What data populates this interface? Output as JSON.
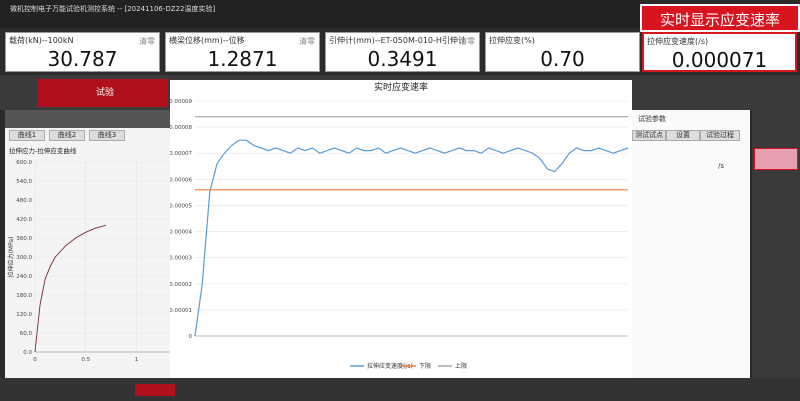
{
  "window_title": "微机控制电子万能试验机测控系统 -- [20241106-DZ22温度实验]",
  "callout": "实时显示应变速率",
  "readouts": [
    {
      "label": "载荷(kN)--100kN",
      "value": "30.787",
      "action": "清零"
    },
    {
      "label": "横梁位移(mm)--位移",
      "value": "1.2871",
      "action": "清零"
    },
    {
      "label": "引伸计(mm)--ET-050M-010-H引伸计",
      "value": "0.3491",
      "action": "清零"
    },
    {
      "label": "拉伸应变(%)",
      "value": "0.70"
    },
    {
      "label": "拉伸应变速度(/s)",
      "value": "0.000071"
    }
  ],
  "nav": {
    "active_tab": "试验"
  },
  "left_panel": {
    "tabs": [
      "曲线1",
      "曲线2",
      "曲线3"
    ]
  },
  "right_panel": {
    "title": "试验参数",
    "tabs": [
      "测试试点",
      "设置",
      "试验过程"
    ],
    "unit": "/s"
  },
  "chart_data": [
    {
      "type": "line",
      "title": "拉伸应力-拉伸应变曲线",
      "y_label": "拉伸应力(MPa)",
      "x": [
        0,
        0.02,
        0.05,
        0.1,
        0.15,
        0.2,
        0.3,
        0.4,
        0.5,
        0.6,
        0.7
      ],
      "series": [
        {
          "name": "拉伸应力",
          "color": "#7a2a2a",
          "values": [
            0,
            60,
            150,
            230,
            270,
            300,
            335,
            360,
            378,
            392,
            400
          ]
        }
      ],
      "xlim": [
        0,
        1.38
      ],
      "xticks": [
        0,
        0.5,
        1
      ],
      "ylim": [
        0,
        600
      ],
      "yticks": [
        {
          "value": 0,
          "label": "0.0"
        },
        {
          "value": 60,
          "label": "60.0"
        },
        {
          "value": 120,
          "label": "120.0"
        },
        {
          "value": 180,
          "label": "180.0"
        },
        {
          "value": 240,
          "label": "240.0"
        },
        {
          "value": 300,
          "label": "300.0"
        },
        {
          "value": 360,
          "label": "360.0"
        },
        {
          "value": 420,
          "label": "420.0"
        },
        {
          "value": 480,
          "label": "480.0"
        },
        {
          "value": 540,
          "label": "540.0"
        },
        {
          "value": 600,
          "label": "600.0"
        }
      ],
      "grid": true
    },
    {
      "type": "line",
      "title": "实时应变速率",
      "series": [
        {
          "name": "拉伸应变速度(/s)",
          "color": "#5b9bd5",
          "values": [
            0,
            2e-05,
            5.5e-05,
            6.6e-05,
            7e-05,
            7.3e-05,
            7.5e-05,
            7.5e-05,
            7.3e-05,
            7.2e-05,
            7.1e-05,
            7.2e-05,
            7.1e-05,
            7e-05,
            7.2e-05,
            7.1e-05,
            7.2e-05,
            7e-05,
            7.1e-05,
            7.2e-05,
            7.1e-05,
            7e-05,
            7.2e-05,
            7.1e-05,
            7.1e-05,
            7.2e-05,
            7e-05,
            7.1e-05,
            7.2e-05,
            7.1e-05,
            7e-05,
            7.1e-05,
            7.2e-05,
            7.1e-05,
            7e-05,
            7.1e-05,
            7.2e-05,
            7.1e-05,
            7.1e-05,
            7e-05,
            7.2e-05,
            7.1e-05,
            7e-05,
            7.1e-05,
            7.2e-05,
            7.1e-05,
            7e-05,
            6.8e-05,
            6.4e-05,
            6.3e-05,
            6.6e-05,
            7e-05,
            7.2e-05,
            7.1e-05,
            7.1e-05,
            7.2e-05,
            7.1e-05,
            7e-05,
            7.1e-05,
            7.2e-05
          ]
        },
        {
          "name": "下限",
          "color": "#ed7d31",
          "values": [
            5.6e-05,
            5.6e-05
          ]
        },
        {
          "name": "上限",
          "color": "#a5a5a5",
          "values": [
            8.4e-05,
            8.4e-05
          ]
        }
      ],
      "ylim": [
        0,
        9e-05
      ],
      "yticks": [
        0,
        1e-05,
        2e-05,
        3e-05,
        4e-05,
        5e-05,
        6e-05,
        7e-05,
        8e-05,
        9e-05
      ],
      "grid": true
    }
  ]
}
